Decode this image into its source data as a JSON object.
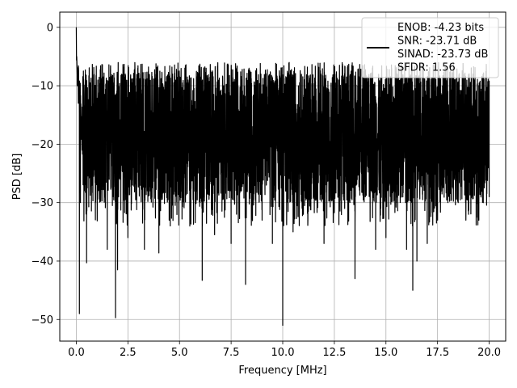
{
  "chart_data": {
    "type": "line",
    "title": "",
    "xlabel": "Frequency [MHz]",
    "ylabel": "PSD [dB]",
    "xlim": [
      -0.8,
      20.8
    ],
    "ylim": [
      -53.7,
      2.6
    ],
    "xticks": [
      0.0,
      2.5,
      5.0,
      7.5,
      10.0,
      12.5,
      15.0,
      17.5,
      20.0
    ],
    "xtick_labels": [
      "0.0",
      "2.5",
      "5.0",
      "7.5",
      "10.0",
      "12.5",
      "15.0",
      "17.5",
      "20.0"
    ],
    "yticks": [
      0,
      -10,
      -20,
      -30,
      -40,
      -50
    ],
    "ytick_labels": [
      "0",
      "−10",
      "−20",
      "−30",
      "−40",
      "−50"
    ],
    "grid": true,
    "legend_position": "top-right",
    "line_color": "#000000",
    "series": [
      {
        "legend_lines": [
          "ENOB: -4.23 bits",
          "SNR: -23.71 dB",
          "SINAD: -23.73 dB",
          "SFDR: 1.56"
        ],
        "noise_floor_band_db": [
          -30,
          -8
        ],
        "x": [
          0.0,
          0.02,
          0.05,
          0.1,
          0.15,
          0.2,
          0.3,
          0.5,
          1.0,
          1.5,
          1.9,
          2.0,
          2.5,
          3.0,
          3.3,
          4.0,
          4.5,
          5.0,
          5.3,
          5.5,
          6.0,
          6.1,
          6.7,
          7.0,
          7.5,
          8.0,
          8.2,
          8.5,
          9.0,
          9.5,
          10.0,
          10.5,
          11.0,
          11.5,
          12.0,
          12.5,
          13.0,
          13.5,
          14.0,
          14.5,
          15.0,
          15.5,
          16.0,
          16.3,
          16.5,
          17.0,
          17.5,
          18.0,
          18.5,
          19.0,
          19.5,
          20.0
        ],
        "y": [
          0.0,
          -5.0,
          -10.0,
          -13.0,
          -49.0,
          -30.0,
          -18.0,
          -40.3,
          -22.0,
          -38.0,
          -49.7,
          -41.5,
          -36.0,
          -25.0,
          -38.0,
          -38.6,
          -33.0,
          -29.0,
          -27.0,
          -34.0,
          -30.0,
          -43.3,
          -35.5,
          -26.0,
          -37.0,
          -28.0,
          -44.0,
          -30.0,
          -33.0,
          -37.0,
          -51.0,
          -35.0,
          -32.0,
          -29.0,
          -37.0,
          -31.0,
          -31.0,
          -43.0,
          -29.0,
          -38.0,
          -36.0,
          -30.0,
          -38.0,
          -45.0,
          -40.0,
          -37.0,
          -33.0,
          -30.0,
          -30.0,
          -32.0,
          -33.0,
          -29.0
        ]
      }
    ]
  }
}
